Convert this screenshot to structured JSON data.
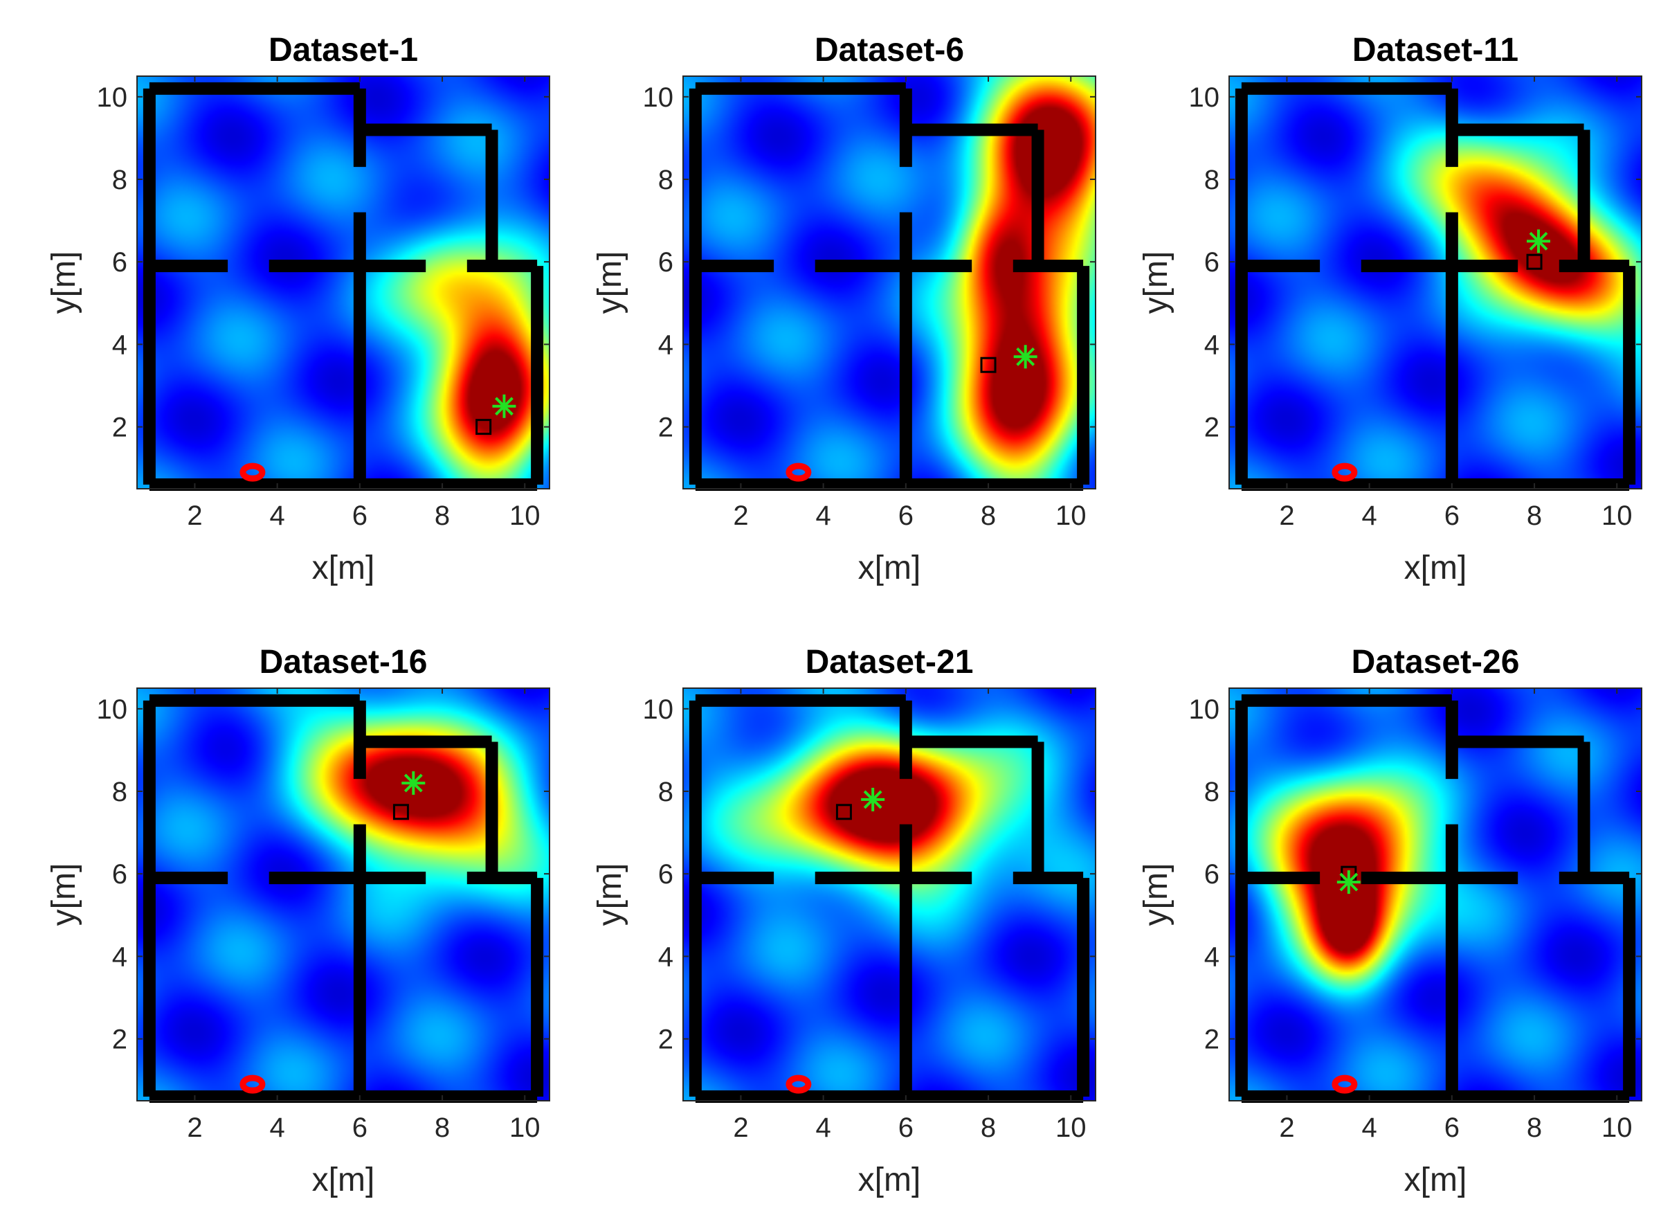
{
  "figure": {
    "colormap": "jet",
    "colors": {
      "wall": "#000000",
      "true_marker": "#000000",
      "estimate_marker": "#22e022",
      "anchor_marker": "#ff0000",
      "axis": "#262626"
    }
  },
  "chart_data": [
    {
      "type": "heatmap",
      "title": "Dataset-1",
      "xlabel": "x[m]",
      "ylabel": "y[m]",
      "xlim": [
        0.6,
        10.6
      ],
      "ylim": [
        0.5,
        10.5
      ],
      "xticks": [
        "2",
        "4",
        "6",
        "8",
        "10"
      ],
      "yticks": [
        "2",
        "4",
        "6",
        "8",
        "10"
      ],
      "true_position": [
        9.0,
        2.0
      ],
      "estimated_position": [
        9.5,
        2.5
      ],
      "anchor_position": [
        3.4,
        0.9
      ],
      "hotspots": [
        {
          "x": 9.3,
          "y": 3.0,
          "sx": 0.9,
          "sy": 1.6,
          "a": 1.0,
          "rot": 0
        },
        {
          "x": 8.0,
          "y": 5.6,
          "sx": 0.9,
          "sy": 1.0,
          "a": 0.35,
          "rot": 0
        }
      ]
    },
    {
      "type": "heatmap",
      "title": "Dataset-6",
      "xlabel": "x[m]",
      "ylabel": "y[m]",
      "xlim": [
        0.6,
        10.6
      ],
      "ylim": [
        0.5,
        10.5
      ],
      "xticks": [
        "2",
        "4",
        "6",
        "8",
        "10"
      ],
      "yticks": [
        "2",
        "4",
        "6",
        "8",
        "10"
      ],
      "true_position": [
        8.0,
        3.5
      ],
      "estimated_position": [
        8.9,
        3.7
      ],
      "anchor_position": [
        3.4,
        0.9
      ],
      "hotspots": [
        {
          "x": 8.8,
          "y": 3.4,
          "sx": 1.0,
          "sy": 1.8,
          "a": 1.0,
          "rot": 0
        },
        {
          "x": 9.6,
          "y": 8.8,
          "sx": 1.1,
          "sy": 1.5,
          "a": 0.95,
          "rot": 0
        },
        {
          "x": 8.2,
          "y": 6.4,
          "sx": 0.7,
          "sy": 1.0,
          "a": 0.5,
          "rot": 0
        }
      ]
    },
    {
      "type": "heatmap",
      "title": "Dataset-11",
      "xlabel": "x[m]",
      "ylabel": "y[m]",
      "xlim": [
        0.6,
        10.6
      ],
      "ylim": [
        0.5,
        10.5
      ],
      "xticks": [
        "2",
        "4",
        "6",
        "8",
        "10"
      ],
      "yticks": [
        "2",
        "4",
        "6",
        "8",
        "10"
      ],
      "true_position": [
        8.0,
        6.0
      ],
      "estimated_position": [
        8.1,
        6.5
      ],
      "anchor_position": [
        3.4,
        0.9
      ],
      "hotspots": [
        {
          "x": 8.0,
          "y": 6.5,
          "sx": 1.9,
          "sy": 0.95,
          "a": 1.0,
          "rot": -0.78
        }
      ]
    },
    {
      "type": "heatmap",
      "title": "Dataset-16",
      "xlabel": "x[m]",
      "ylabel": "y[m]",
      "xlim": [
        0.6,
        10.6
      ],
      "ylim": [
        0.5,
        10.5
      ],
      "xticks": [
        "2",
        "4",
        "6",
        "8",
        "10"
      ],
      "yticks": [
        "2",
        "4",
        "6",
        "8",
        "10"
      ],
      "true_position": [
        7.0,
        7.5
      ],
      "estimated_position": [
        7.3,
        8.2
      ],
      "anchor_position": [
        3.4,
        0.9
      ],
      "hotspots": [
        {
          "x": 7.4,
          "y": 8.0,
          "sx": 1.7,
          "sy": 1.1,
          "a": 1.0,
          "rot": -0.45
        }
      ]
    },
    {
      "type": "heatmap",
      "title": "Dataset-21",
      "xlabel": "x[m]",
      "ylabel": "y[m]",
      "xlim": [
        0.6,
        10.6
      ],
      "ylim": [
        0.5,
        10.5
      ],
      "xticks": [
        "2",
        "4",
        "6",
        "8",
        "10"
      ],
      "yticks": [
        "2",
        "4",
        "6",
        "8",
        "10"
      ],
      "true_position": [
        4.5,
        7.5
      ],
      "estimated_position": [
        5.2,
        7.8
      ],
      "anchor_position": [
        3.4,
        0.9
      ],
      "hotspots": [
        {
          "x": 5.5,
          "y": 7.6,
          "sx": 1.9,
          "sy": 1.15,
          "a": 1.0,
          "rot": 0
        }
      ]
    },
    {
      "type": "heatmap",
      "title": "Dataset-26",
      "xlabel": "x[m]",
      "ylabel": "y[m]",
      "xlim": [
        0.6,
        10.6
      ],
      "ylim": [
        0.5,
        10.5
      ],
      "xticks": [
        "2",
        "4",
        "6",
        "8",
        "10"
      ],
      "yticks": [
        "2",
        "4",
        "6",
        "8",
        "10"
      ],
      "true_position": [
        3.5,
        6.0
      ],
      "estimated_position": [
        3.5,
        5.8
      ],
      "anchor_position": [
        3.4,
        0.9
      ],
      "hotspots": [
        {
          "x": 3.5,
          "y": 6.3,
          "sx": 1.2,
          "sy": 1.3,
          "a": 1.0,
          "rot": 0
        },
        {
          "x": 3.5,
          "y": 4.6,
          "sx": 0.6,
          "sy": 0.8,
          "a": 0.55,
          "rot": 0
        }
      ]
    }
  ],
  "walls": [
    [
      [
        0.9,
        10.2
      ],
      [
        6.0,
        10.2
      ]
    ],
    [
      [
        0.9,
        10.2
      ],
      [
        0.9,
        0.6
      ]
    ],
    [
      [
        0.9,
        0.6
      ],
      [
        10.3,
        0.6
      ]
    ],
    [
      [
        10.3,
        0.6
      ],
      [
        10.3,
        5.9
      ]
    ],
    [
      [
        6.0,
        10.2
      ],
      [
        6.0,
        8.3
      ]
    ],
    [
      [
        6.0,
        7.2
      ],
      [
        6.0,
        0.6
      ]
    ],
    [
      [
        6.0,
        9.2
      ],
      [
        9.2,
        9.2
      ]
    ],
    [
      [
        9.2,
        9.2
      ],
      [
        9.2,
        5.9
      ]
    ],
    [
      [
        0.9,
        5.9
      ],
      [
        2.8,
        5.9
      ]
    ],
    [
      [
        3.8,
        5.9
      ],
      [
        7.6,
        5.9
      ]
    ],
    [
      [
        8.6,
        5.9
      ],
      [
        10.3,
        5.9
      ]
    ]
  ]
}
